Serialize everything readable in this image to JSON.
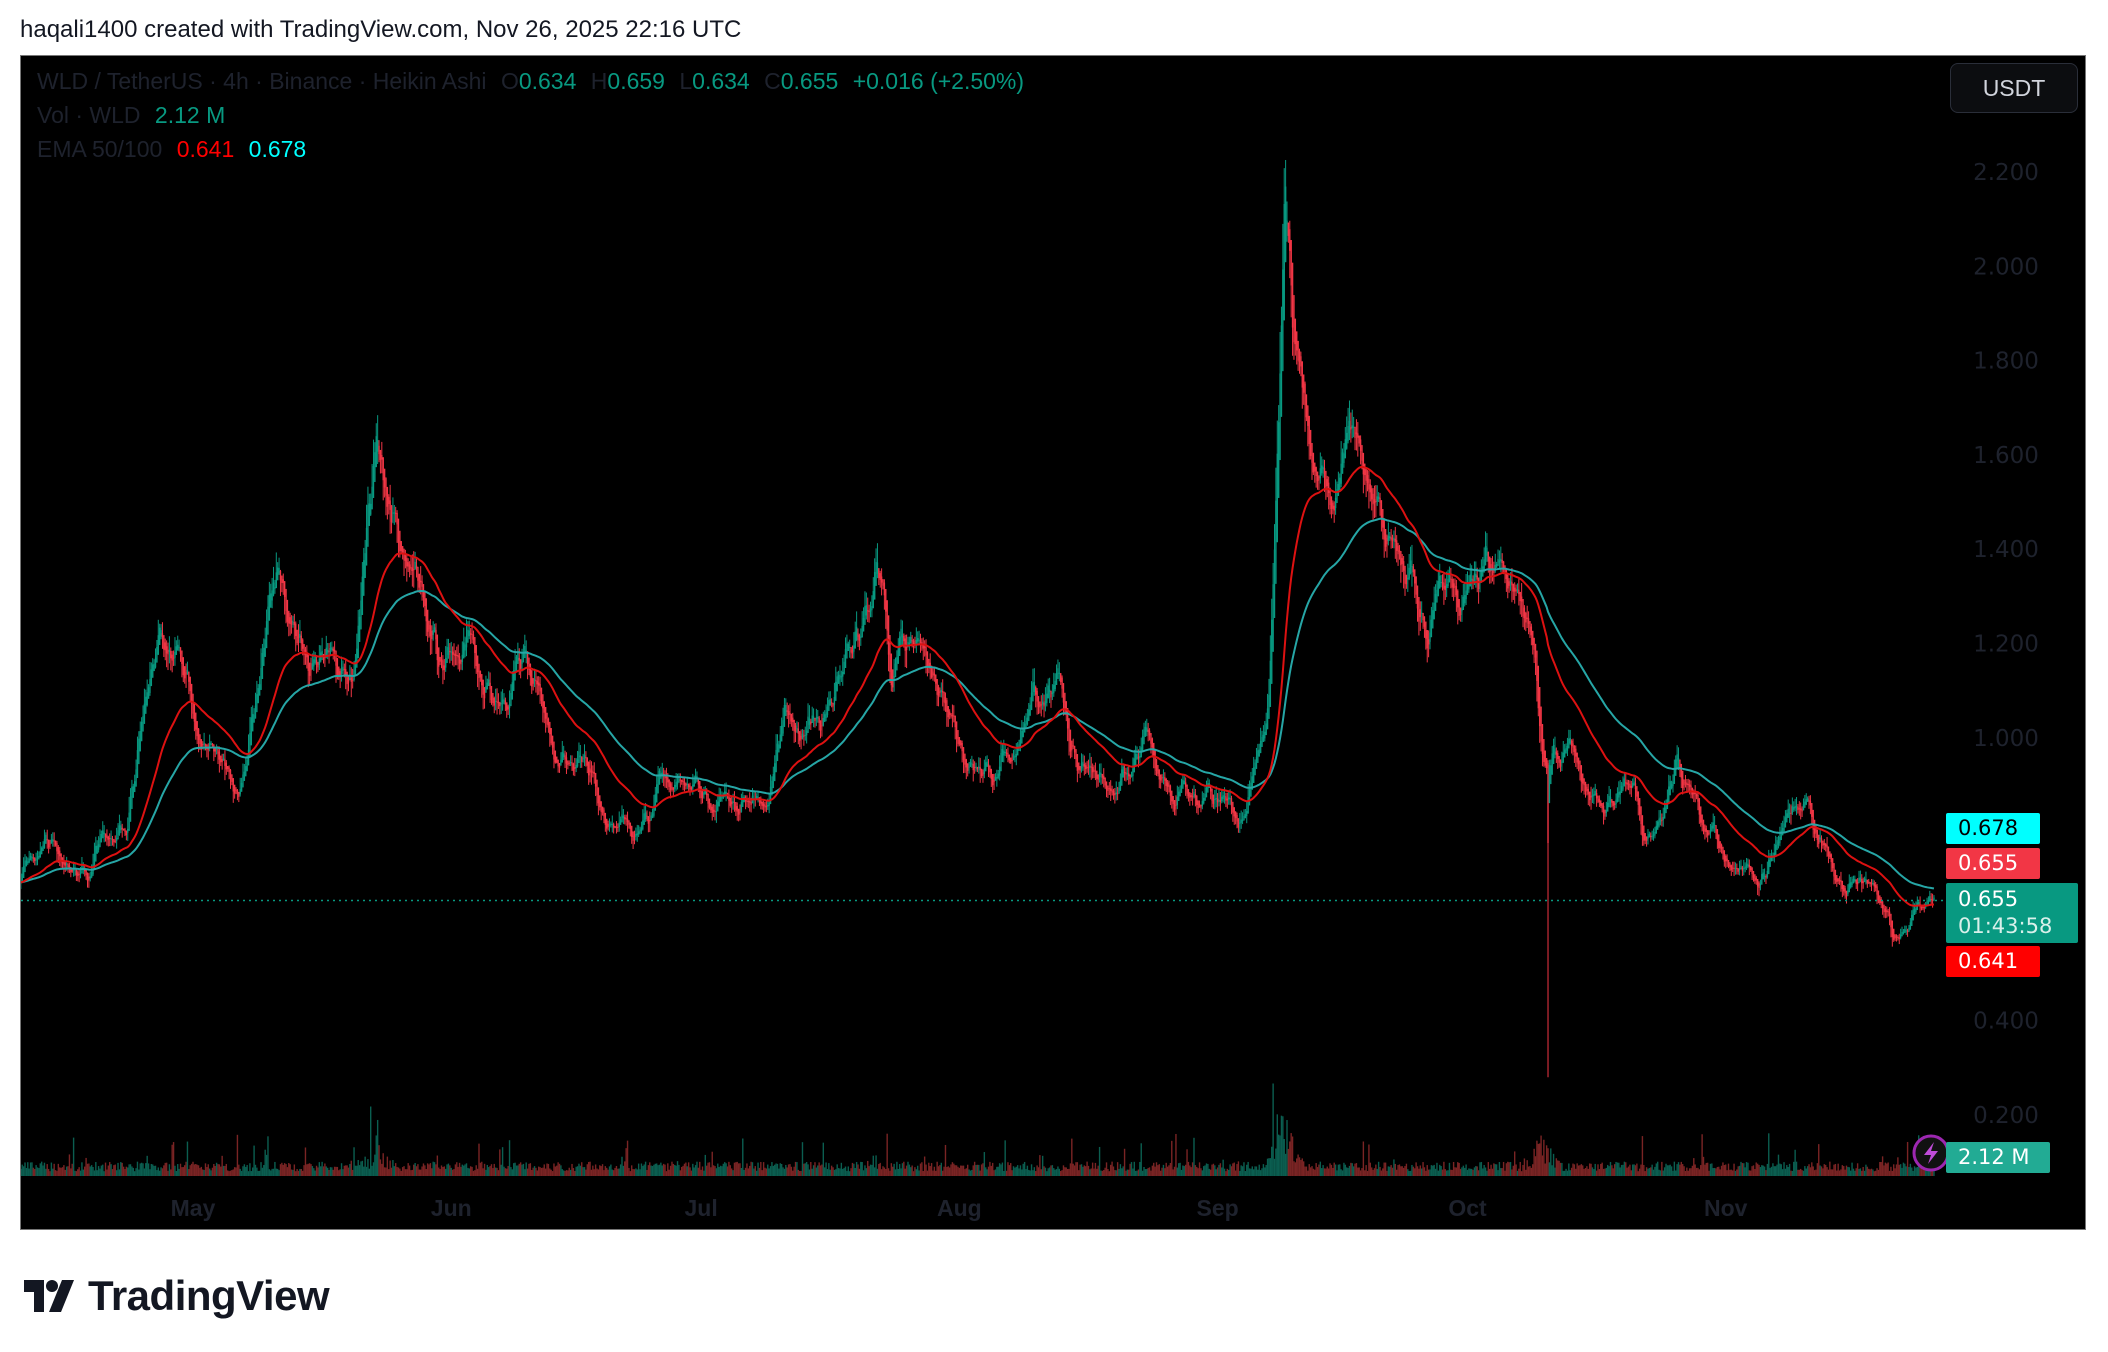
{
  "caption": "haqali1400 created with TradingView.com, Nov 26, 2025 22:16 UTC",
  "legend": {
    "symbol": "WLD / TetherUS · 4h · Binance · Heikin Ashi",
    "o_label": "O",
    "o": "0.634",
    "h_label": "H",
    "h": "0.659",
    "l_label": "L",
    "l": "0.634",
    "c_label": "C",
    "c": "0.655",
    "change": "+0.016 (+2.50%)",
    "vol_label": "Vol · WLD",
    "vol": "2.12 M",
    "ema_label": "EMA 50/100",
    "ema50": "0.641",
    "ema100": "0.678"
  },
  "currency_button": "USDT",
  "tags": {
    "ema100": "0.678",
    "high_close": "0.655",
    "last_price": "0.655",
    "countdown": "01:43:58",
    "ema50": "0.641",
    "volume": "2.12 M"
  },
  "logo_text": "TradingView",
  "colors": {
    "up": "#089981",
    "down": "#f23645",
    "ema50": "#ff0000",
    "ema100": "#00ffff",
    "vol_up": "#0b5e50",
    "vol_down": "#7a2424",
    "background": "#000000"
  },
  "chart_data": {
    "type": "candlestick",
    "style": "heikin-ashi",
    "interval": "4h",
    "symbol": "WLD/USDT",
    "y_axis_ticks": [
      "2.200",
      "2.000",
      "1.800",
      "1.600",
      "1.400",
      "1.200",
      "1.000",
      "0.400",
      "0.200"
    ],
    "ylim": [
      0.1,
      2.35
    ],
    "x_axis_ticks": [
      "May",
      "Jun",
      "Jul",
      "Aug",
      "Sep",
      "Oct",
      "Nov"
    ],
    "grid": false,
    "price_path": [
      [
        "2025-04-10",
        0.7
      ],
      [
        "2025-04-13",
        0.78
      ],
      [
        "2025-04-17",
        0.69
      ],
      [
        "2025-04-23",
        0.85
      ],
      [
        "2025-04-27",
        1.23
      ],
      [
        "2025-05-01",
        1.11
      ],
      [
        "2025-05-06",
        0.88
      ],
      [
        "2025-05-11",
        1.33
      ],
      [
        "2025-05-16",
        1.15
      ],
      [
        "2025-05-20",
        1.11
      ],
      [
        "2025-05-23",
        1.63
      ],
      [
        "2025-05-26",
        1.39
      ],
      [
        "2025-05-29",
        1.31
      ],
      [
        "2025-05-31",
        1.13
      ],
      [
        "2025-06-03",
        1.22
      ],
      [
        "2025-06-06",
        1.05
      ],
      [
        "2025-06-11",
        1.16
      ],
      [
        "2025-06-13",
        0.96
      ],
      [
        "2025-06-18",
        0.93
      ],
      [
        "2025-06-23",
        0.79
      ],
      [
        "2025-06-26",
        0.9
      ],
      [
        "2025-07-01",
        0.89
      ],
      [
        "2025-07-05",
        0.88
      ],
      [
        "2025-07-09",
        0.86
      ],
      [
        "2025-07-11",
        1.08
      ],
      [
        "2025-07-15",
        1.02
      ],
      [
        "2025-07-20",
        1.25
      ],
      [
        "2025-07-22",
        1.39
      ],
      [
        "2025-07-24",
        1.13
      ],
      [
        "2025-07-27",
        1.22
      ],
      [
        "2025-07-30",
        1.05
      ],
      [
        "2025-08-02",
        0.93
      ],
      [
        "2025-08-05",
        0.93
      ],
      [
        "2025-08-09",
        1.08
      ],
      [
        "2025-08-13",
        1.12
      ],
      [
        "2025-08-15",
        0.96
      ],
      [
        "2025-08-20",
        0.91
      ],
      [
        "2025-08-23",
        1.01
      ],
      [
        "2025-08-25",
        0.89
      ],
      [
        "2025-09-02",
        0.85
      ],
      [
        "2025-09-05",
        0.89
      ],
      [
        "2025-09-07",
        1.05
      ],
      [
        "2025-09-08",
        1.56
      ],
      [
        "2025-09-09",
        2.19
      ],
      [
        "2025-09-10",
        1.88
      ],
      [
        "2025-09-12",
        1.65
      ],
      [
        "2025-09-15",
        1.51
      ],
      [
        "2025-09-18",
        1.68
      ],
      [
        "2025-09-20",
        1.51
      ],
      [
        "2025-09-23",
        1.36
      ],
      [
        "2025-09-26",
        1.25
      ],
      [
        "2025-09-30",
        1.28
      ],
      [
        "2025-10-04",
        1.36
      ],
      [
        "2025-10-07",
        1.31
      ],
      [
        "2025-10-09",
        1.22
      ],
      [
        "2025-10-10",
        0.91
      ],
      [
        "2025-10-13",
        1.02
      ],
      [
        "2025-10-15",
        0.92
      ],
      [
        "2025-10-18",
        0.85
      ],
      [
        "2025-10-21",
        0.93
      ],
      [
        "2025-10-22",
        0.82
      ],
      [
        "2025-10-26",
        0.93
      ],
      [
        "2025-10-30",
        0.79
      ],
      [
        "2025-11-05",
        0.68
      ],
      [
        "2025-11-08",
        0.85
      ],
      [
        "2025-11-11",
        0.82
      ],
      [
        "2025-11-14",
        0.71
      ],
      [
        "2025-11-19",
        0.66
      ],
      [
        "2025-11-21",
        0.58
      ],
      [
        "2025-11-26",
        0.655
      ]
    ],
    "flash_crash": {
      "date": "2025-10-10",
      "low": 0.28
    },
    "volume_spikes": [
      [
        "2025-05-23",
        2.5
      ],
      [
        "2025-09-09",
        6.0
      ],
      [
        "2025-10-10",
        4.0
      ],
      [
        "2025-07-22",
        1.7
      ]
    ],
    "last": {
      "close": 0.655,
      "ema50": 0.641,
      "ema100": 0.678,
      "volume": "2.12 M"
    }
  }
}
